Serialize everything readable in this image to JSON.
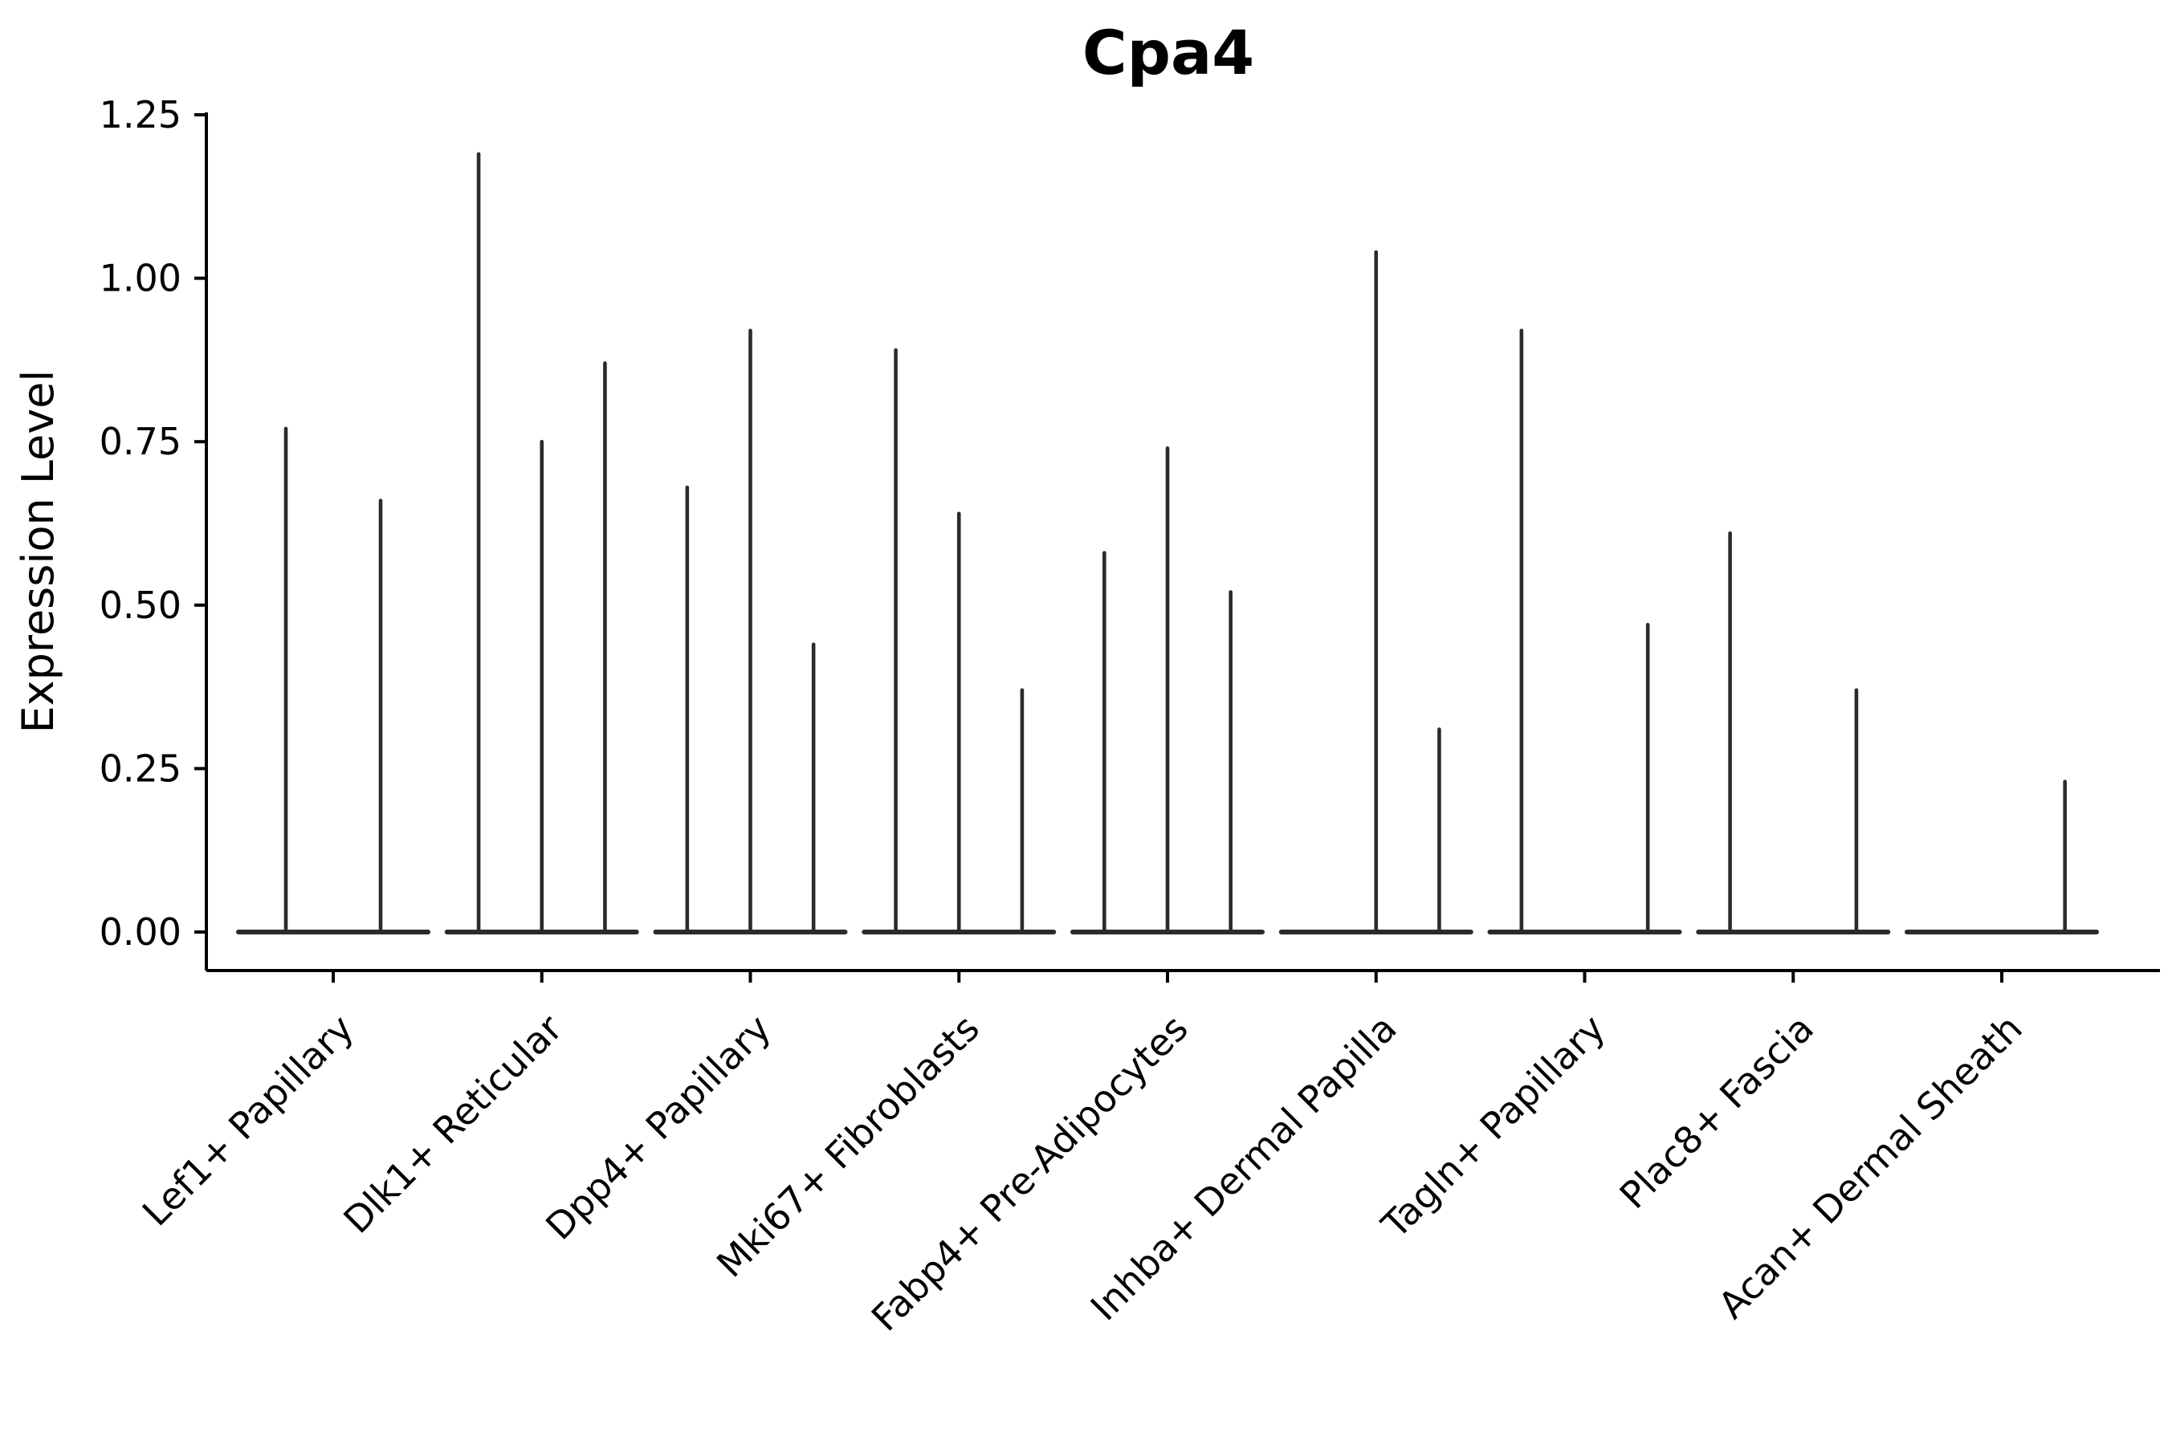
{
  "page": {
    "background": "#ffffff"
  },
  "chart_data": {
    "type": "violin",
    "title": "Cpa4",
    "xlabel": "",
    "ylabel": "Expression Level",
    "ylim": [
      -0.059,
      1.254
    ],
    "yticks": [
      0.0,
      0.25,
      0.5,
      0.75,
      1.0,
      1.25
    ],
    "ytick_labels": [
      "0.00",
      "0.25",
      "0.50",
      "0.75",
      "1.00",
      "1.25"
    ],
    "grid": false,
    "legend": false,
    "ink_color": "#2b2b2b",
    "axis_color": "#000000",
    "categories": [
      "Lef1+ Papillary",
      "Dlk1+ Reticular",
      "Dpp4+ Papillary",
      "Mki67+ Fibroblasts",
      "Fabp4+ Pre-Adipocytes",
      "Inhba+ Dermal Papilla",
      "Tagln+ Papillary",
      "Plac8+ Fascia",
      "Acan+ Dermal Sheath"
    ],
    "groups": [
      {
        "category": "Lef1+ Papillary",
        "violins": [
          {
            "max": 0.77
          },
          {
            "max": 0.66
          }
        ]
      },
      {
        "category": "Dlk1+ Reticular",
        "violins": [
          {
            "max": 1.19
          },
          {
            "max": 0.75
          },
          {
            "max": 0.87
          }
        ]
      },
      {
        "category": "Dpp4+ Papillary",
        "violins": [
          {
            "max": 0.68
          },
          {
            "max": 0.92
          },
          {
            "max": 0.44
          }
        ]
      },
      {
        "category": "Mki67+ Fibroblasts",
        "violins": [
          {
            "max": 0.89
          },
          {
            "max": 0.64
          },
          {
            "max": 0.37
          }
        ]
      },
      {
        "category": "Fabp4+ Pre-Adipocytes",
        "violins": [
          {
            "max": 0.58
          },
          {
            "max": 0.74
          },
          {
            "max": 0.52
          }
        ]
      },
      {
        "category": "Inhba+ Dermal Papilla",
        "violins": [
          {
            "max": 0
          },
          {
            "max": 1.04
          },
          {
            "max": 0.31
          }
        ]
      },
      {
        "category": "Tagln+ Papillary",
        "violins": [
          {
            "max": 0.92
          },
          {
            "max": 0
          },
          {
            "max": 0.47
          }
        ]
      },
      {
        "category": "Plac8+ Fascia",
        "violins": [
          {
            "max": 0.61
          },
          {
            "max": 0
          },
          {
            "max": 0.37
          }
        ]
      },
      {
        "category": "Acan+ Dermal Sheath",
        "violins": [
          {
            "max": 0
          },
          {
            "max": 0
          },
          {
            "max": 0.23
          }
        ]
      }
    ]
  }
}
